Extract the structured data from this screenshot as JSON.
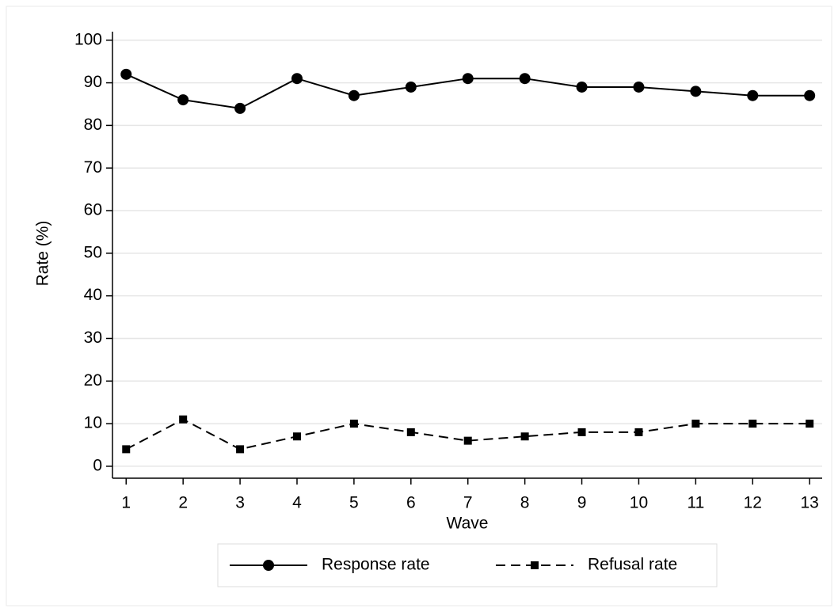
{
  "chart_data": {
    "type": "line",
    "x_label": "Wave",
    "y_label": "Rate (%)",
    "x": [
      1,
      2,
      3,
      4,
      5,
      6,
      7,
      8,
      9,
      10,
      11,
      12,
      13
    ],
    "series": [
      {
        "name": "Response rate",
        "color": "#000000",
        "marker": "circle",
        "dash": false,
        "values": [
          92,
          86,
          84,
          91,
          87,
          89,
          91,
          91,
          89,
          89,
          88,
          87,
          87
        ]
      },
      {
        "name": "Refusal rate",
        "color": "#000000",
        "marker": "square",
        "dash": true,
        "values": [
          4,
          11,
          4,
          7,
          10,
          8,
          6,
          7,
          8,
          8,
          10,
          10,
          10
        ]
      }
    ],
    "xlim": [
      0.76,
      13.22
    ],
    "ylim": [
      -2.8,
      102
    ],
    "xticks": [
      1,
      2,
      3,
      4,
      5,
      6,
      7,
      8,
      9,
      10,
      11,
      12,
      13
    ],
    "yticks": [
      0,
      10,
      20,
      30,
      40,
      50,
      60,
      70,
      80,
      90,
      100
    ],
    "grid": true,
    "legend": "bottom"
  }
}
